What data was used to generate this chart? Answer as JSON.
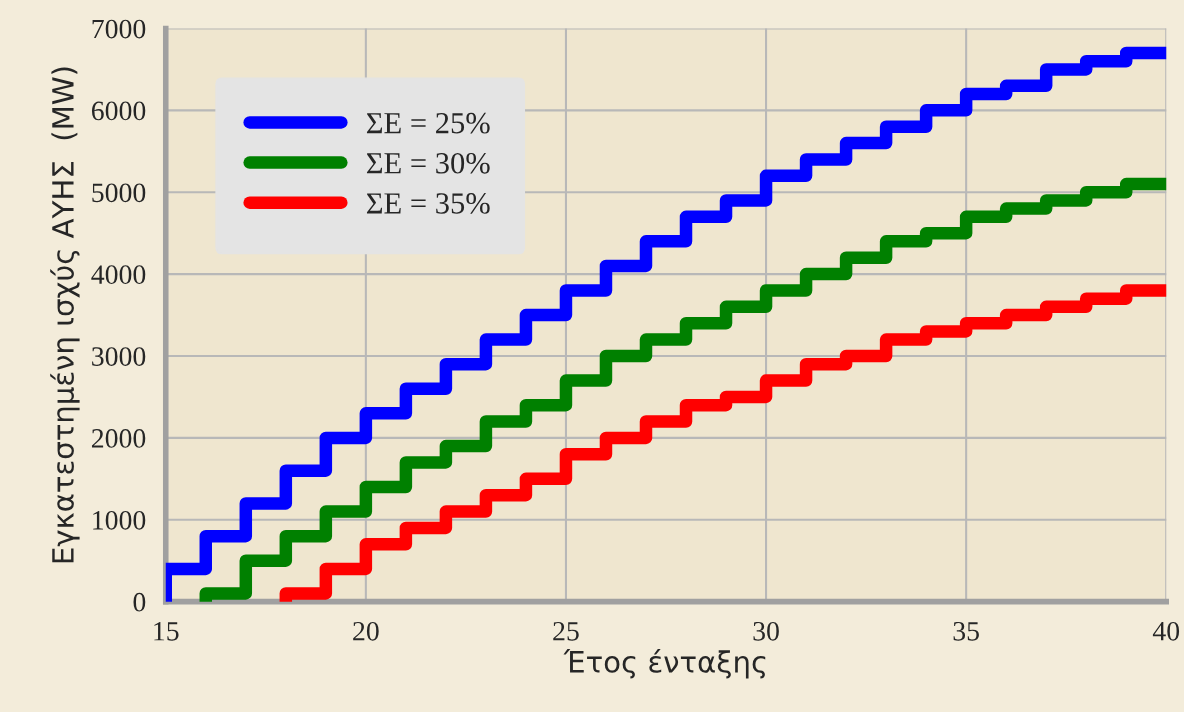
{
  "chart_data": {
    "type": "step",
    "xlabel": "Έτος ένταξης",
    "ylabel": "Εγκατεστημένη ισχύς ΑΥΗΣ  (MW)",
    "xlim": [
      15,
      40
    ],
    "xticks": [
      15,
      20,
      25,
      30,
      35,
      40
    ],
    "ylim": [
      0,
      7000
    ],
    "yticks": [
      0,
      1000,
      2000,
      3000,
      4000,
      5000,
      6000,
      7000
    ],
    "grid": true,
    "legend": "top left",
    "series": [
      {
        "name": "ΣΕ = 25%",
        "color": "#0000ff",
        "x": [
          15,
          15,
          16,
          17,
          18,
          19,
          20,
          21,
          22,
          23,
          24,
          25,
          26,
          27,
          28,
          29,
          30,
          31,
          32,
          33,
          34,
          35,
          36,
          37,
          38,
          39,
          40
        ],
        "values": [
          0,
          400,
          800,
          1200,
          1600,
          2000,
          2300,
          2600,
          2900,
          3200,
          3500,
          3800,
          4100,
          4400,
          4700,
          4900,
          5200,
          5400,
          5600,
          5800,
          6000,
          6200,
          6300,
          6500,
          6600,
          6700,
          6700
        ]
      },
      {
        "name": "ΣΕ = 30%",
        "color": "#008000",
        "x": [
          16,
          16,
          17,
          18,
          19,
          20,
          21,
          22,
          23,
          24,
          25,
          26,
          27,
          28,
          29,
          30,
          31,
          32,
          33,
          34,
          35,
          36,
          37,
          38,
          39,
          40
        ],
        "values": [
          0,
          100,
          500,
          800,
          1100,
          1400,
          1700,
          1900,
          2200,
          2400,
          2700,
          3000,
          3200,
          3400,
          3600,
          3800,
          4000,
          4200,
          4400,
          4500,
          4700,
          4800,
          4900,
          5000,
          5100,
          5100
        ]
      },
      {
        "name": "ΣΕ = 35%",
        "color": "#ff0000",
        "x": [
          18,
          18,
          19,
          20,
          21,
          22,
          23,
          24,
          25,
          26,
          27,
          28,
          29,
          30,
          31,
          32,
          33,
          34,
          35,
          36,
          37,
          38,
          39,
          40
        ],
        "values": [
          0,
          100,
          400,
          700,
          900,
          1100,
          1300,
          1500,
          1800,
          2000,
          2200,
          2400,
          2500,
          2700,
          2900,
          3000,
          3200,
          3300,
          3400,
          3500,
          3600,
          3700,
          3800,
          3800
        ]
      }
    ]
  }
}
